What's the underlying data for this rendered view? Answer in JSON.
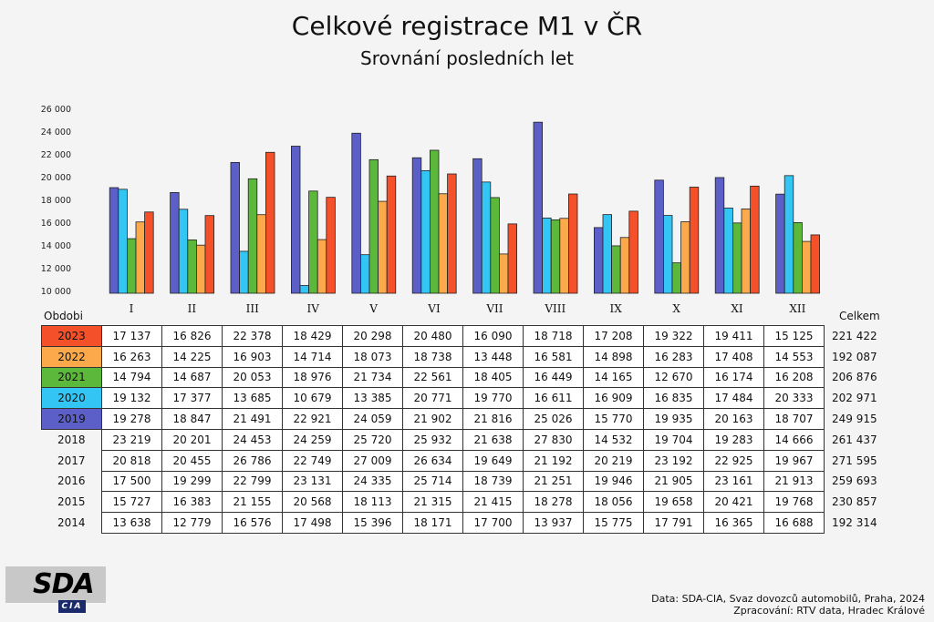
{
  "title": "Celkové registrace M1 v ČR",
  "subtitle": "Srovnání posledních let",
  "logo": {
    "main": "SDA",
    "sub": "CIA"
  },
  "footer": {
    "line1": "Data: SDA-CIA, Svaz dovozců automobilů, Praha, 2024",
    "line2": "Zpracování: RTV data, Hradec Králové"
  },
  "chart_data": {
    "type": "bar",
    "title": "Celkové registrace M1 v ČR",
    "subtitle": "Srovnání posledních let",
    "categories": [
      "I",
      "II",
      "III",
      "IV",
      "V",
      "VI",
      "VII",
      "VIII",
      "IX",
      "X",
      "XI",
      "XII"
    ],
    "ylim": [
      10000,
      26000
    ],
    "yticks": [
      10000,
      12000,
      14000,
      16000,
      18000,
      20000,
      22000,
      24000,
      26000
    ],
    "ytick_labels": [
      "10 000",
      "12 000",
      "14 000",
      "16 000",
      "18 000",
      "20 000",
      "22 000",
      "24 000",
      "26 000"
    ],
    "series": [
      {
        "name": "2019",
        "color": "#5b5fc7",
        "values": [
          19278,
          18847,
          21491,
          22921,
          24059,
          21902,
          21816,
          25026,
          15770,
          19935,
          20163,
          18707
        ]
      },
      {
        "name": "2020",
        "color": "#33c6f4",
        "values": [
          19132,
          17377,
          13685,
          10679,
          13385,
          20771,
          19770,
          16611,
          16909,
          16835,
          17484,
          20333
        ]
      },
      {
        "name": "2021",
        "color": "#5cb83a",
        "values": [
          14794,
          14687,
          20053,
          18976,
          21734,
          22561,
          18405,
          16449,
          14165,
          12670,
          16174,
          16208
        ]
      },
      {
        "name": "2022",
        "color": "#fba94a",
        "values": [
          16263,
          14225,
          16903,
          14714,
          18073,
          18738,
          13448,
          16581,
          14898,
          16283,
          17408,
          14553
        ]
      },
      {
        "name": "2023",
        "color": "#f4502a",
        "values": [
          17137,
          16826,
          22378,
          18429,
          20298,
          20480,
          16090,
          18718,
          17208,
          19322,
          19411,
          15125
        ]
      }
    ],
    "table": {
      "header_label": "Obdobi",
      "total_label": "Celkem",
      "rows": [
        {
          "year": "2023",
          "color": "#f4502a",
          "cells": [
            "17 137",
            "16 826",
            "22 378",
            "18 429",
            "20 298",
            "20 480",
            "16 090",
            "18 718",
            "17 208",
            "19 322",
            "19 411",
            "15 125"
          ],
          "total": "221 422"
        },
        {
          "year": "2022",
          "color": "#fba94a",
          "cells": [
            "16 263",
            "14 225",
            "16 903",
            "14 714",
            "18 073",
            "18 738",
            "13 448",
            "16 581",
            "14 898",
            "16 283",
            "17 408",
            "14 553"
          ],
          "total": "192 087"
        },
        {
          "year": "2021",
          "color": "#5cb83a",
          "cells": [
            "14 794",
            "14 687",
            "20 053",
            "18 976",
            "21 734",
            "22 561",
            "18 405",
            "16 449",
            "14 165",
            "12 670",
            "16 174",
            "16 208"
          ],
          "total": "206 876"
        },
        {
          "year": "2020",
          "color": "#33c6f4",
          "cells": [
            "19 132",
            "17 377",
            "13 685",
            "10 679",
            "13 385",
            "20 771",
            "19 770",
            "16 611",
            "16 909",
            "16 835",
            "17 484",
            "20 333"
          ],
          "total": "202 971"
        },
        {
          "year": "2019",
          "color": "#5b5fc7",
          "cells": [
            "19 278",
            "18 847",
            "21 491",
            "22 921",
            "24 059",
            "21 902",
            "21 816",
            "25 026",
            "15 770",
            "19 935",
            "20 163",
            "18 707"
          ],
          "total": "249 915"
        },
        {
          "year": "2018",
          "color": "",
          "cells": [
            "23 219",
            "20 201",
            "24 453",
            "24 259",
            "25 720",
            "25 932",
            "21 638",
            "27 830",
            "14 532",
            "19 704",
            "19 283",
            "14 666"
          ],
          "total": "261 437"
        },
        {
          "year": "2017",
          "color": "",
          "cells": [
            "20 818",
            "20 455",
            "26 786",
            "22 749",
            "27 009",
            "26 634",
            "19 649",
            "21 192",
            "20 219",
            "23 192",
            "22 925",
            "19 967"
          ],
          "total": "271 595"
        },
        {
          "year": "2016",
          "color": "",
          "cells": [
            "17 500",
            "19 299",
            "22 799",
            "23 131",
            "24 335",
            "25 714",
            "18 739",
            "21 251",
            "19 946",
            "21 905",
            "23 161",
            "21 913"
          ],
          "total": "259 693"
        },
        {
          "year": "2015",
          "color": "",
          "cells": [
            "15 727",
            "16 383",
            "21 155",
            "20 568",
            "18 113",
            "21 315",
            "21 415",
            "18 278",
            "18 056",
            "19 658",
            "20 421",
            "19 768"
          ],
          "total": "230 857"
        },
        {
          "year": "2014",
          "color": "",
          "cells": [
            "13 638",
            "12 779",
            "16 576",
            "17 498",
            "15 396",
            "18 171",
            "17 700",
            "13 937",
            "15 775",
            "17 791",
            "16 365",
            "16 688"
          ],
          "total": "192 314"
        }
      ]
    }
  }
}
